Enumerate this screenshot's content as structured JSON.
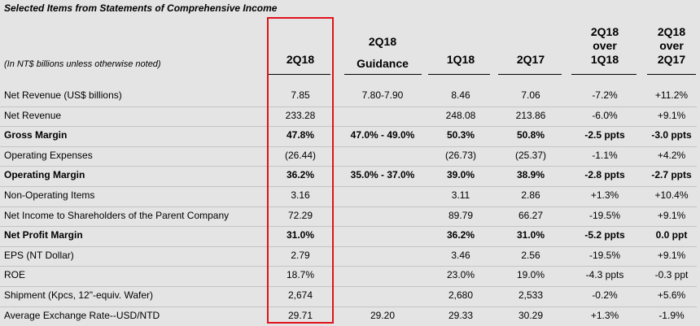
{
  "title": "Selected Items from Statements of Comprehensive Income",
  "header_note": "(In NT$ billions unless otherwise noted)",
  "columns": [
    {
      "lines": [
        "2Q18"
      ]
    },
    {
      "lines": [
        "2Q18",
        "Guidance"
      ]
    },
    {
      "lines": [
        "1Q18"
      ]
    },
    {
      "lines": [
        "2Q17"
      ]
    },
    {
      "lines": [
        "2Q18",
        "over",
        "1Q18"
      ]
    },
    {
      "lines": [
        "2Q18",
        "over",
        "2Q17"
      ]
    }
  ],
  "highlight_color": "#e0121b",
  "background_color": "#e4e4e4",
  "rows": [
    {
      "label": "Net Revenue (US$ billions)",
      "bold": false,
      "cells": [
        "7.85",
        "7.80-7.90",
        "8.46",
        "7.06",
        "-7.2%",
        "+11.2%"
      ]
    },
    {
      "label": "Net Revenue",
      "bold": false,
      "cells": [
        "233.28",
        "",
        "248.08",
        "213.86",
        "-6.0%",
        "+9.1%"
      ]
    },
    {
      "label": "Gross Margin",
      "bold": true,
      "cells": [
        "47.8%",
        "47.0% - 49.0%",
        "50.3%",
        "50.8%",
        "-2.5 ppts",
        "-3.0 ppts"
      ]
    },
    {
      "label": "Operating Expenses",
      "bold": false,
      "cells": [
        "(26.44)",
        "",
        "(26.73)",
        "(25.37)",
        "-1.1%",
        "+4.2%"
      ]
    },
    {
      "label": "Operating Margin",
      "bold": true,
      "cells": [
        "36.2%",
        "35.0% - 37.0%",
        "39.0%",
        "38.9%",
        "-2.8 ppts",
        "-2.7 ppts"
      ]
    },
    {
      "label": "Non-Operating Items",
      "bold": false,
      "cells": [
        "3.16",
        "",
        "3.11",
        "2.86",
        "+1.3%",
        "+10.4%"
      ]
    },
    {
      "label": "Net Income to Shareholders of the Parent Company",
      "bold": false,
      "cells": [
        "72.29",
        "",
        "89.79",
        "66.27",
        "-19.5%",
        "+9.1%"
      ]
    },
    {
      "label": "Net Profit Margin",
      "bold": true,
      "cells": [
        "31.0%",
        "",
        "36.2%",
        "31.0%",
        "-5.2 ppts",
        "0.0 ppt"
      ]
    },
    {
      "label": "EPS (NT Dollar)",
      "bold": false,
      "cells": [
        "2.79",
        "",
        "3.46",
        "2.56",
        "-19.5%",
        "+9.1%"
      ]
    },
    {
      "label": "ROE",
      "bold": false,
      "cells": [
        "18.7%",
        "",
        "23.0%",
        "19.0%",
        "-4.3 ppts",
        "-0.3 ppt"
      ]
    },
    {
      "label": "Shipment (Kpcs, 12\"-equiv. Wafer)",
      "bold": false,
      "cells": [
        "2,674",
        "",
        "2,680",
        "2,533",
        "-0.2%",
        "+5.6%"
      ]
    },
    {
      "label": "Average Exchange Rate--USD/NTD",
      "bold": false,
      "cells": [
        "29.71",
        "29.20",
        "29.33",
        "30.29",
        "+1.3%",
        "-1.9%"
      ]
    }
  ]
}
